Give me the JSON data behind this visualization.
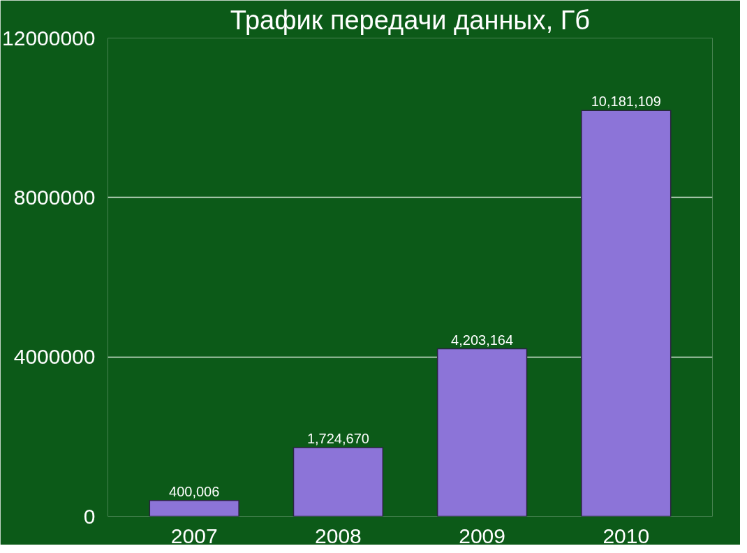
{
  "chart_data": {
    "type": "bar",
    "title": "Трафик передачи данных, Гб",
    "categories": [
      "2007",
      "2008",
      "2009",
      "2010"
    ],
    "values": [
      400006,
      1724670,
      4203164,
      10181109
    ],
    "value_labels": [
      "400,006",
      "1,724,670",
      "4,203,164",
      "10,181,109"
    ],
    "color": "#8c74d8",
    "ylim": [
      0,
      12000000
    ],
    "yticks": [
      0,
      4000000,
      8000000,
      12000000
    ],
    "grid": "y"
  }
}
